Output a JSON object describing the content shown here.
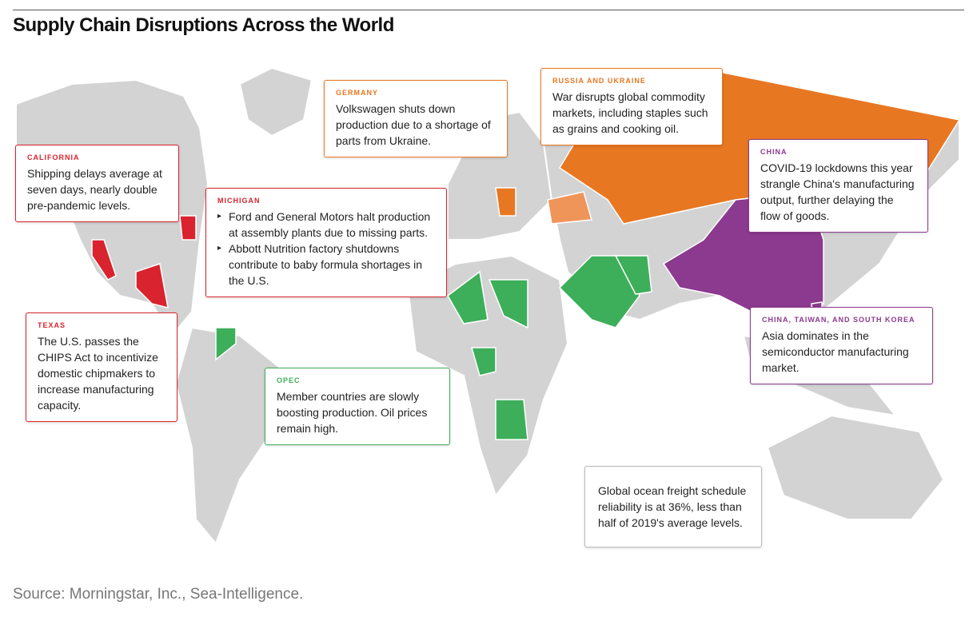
{
  "title": "Supply Chain Disruptions Across the World",
  "source": "Source: Morningstar, Inc., Sea-Intelligence.",
  "callouts": {
    "california": {
      "label": "CALIFORNIA",
      "text": "Shipping delays average at seven days, nearly double pre-pandemic levels."
    },
    "michigan": {
      "label": "MICHIGAN",
      "bullets": [
        "Ford and General Motors halt production at assembly plants due to missing parts.",
        "Abbott Nutrition factory shutdowns contribute to baby formula shortages in the U.S."
      ]
    },
    "texas": {
      "label": "TEXAS",
      "text": "The U.S. passes the CHIPS Act to incentivize domestic chipmakers to increase manufacturing capacity."
    },
    "germany": {
      "label": "GERMANY",
      "text": "Volkswagen shuts down production due to a shortage of parts from Ukraine."
    },
    "russia_ukraine": {
      "label": "RUSSIA AND UKRAINE",
      "text": "War disrupts global commodity markets, including staples such as grains and cooking oil."
    },
    "opec": {
      "label": "OPEC",
      "text": "Member countries are slowly boosting production. Oil prices remain high."
    },
    "china": {
      "label": "CHINA",
      "text": "COVID-19 lockdowns this year strangle China's manufacturing output, further delaying the flow of goods."
    },
    "china_taiwan_korea": {
      "label": "CHINA, TAIWAN, AND SOUTH KOREA",
      "text": "Asia dominates in the semiconductor manufacturing market."
    },
    "freight": {
      "text": "Global ocean freight schedule reliability is at 36%, less than half of 2019's average levels."
    }
  }
}
